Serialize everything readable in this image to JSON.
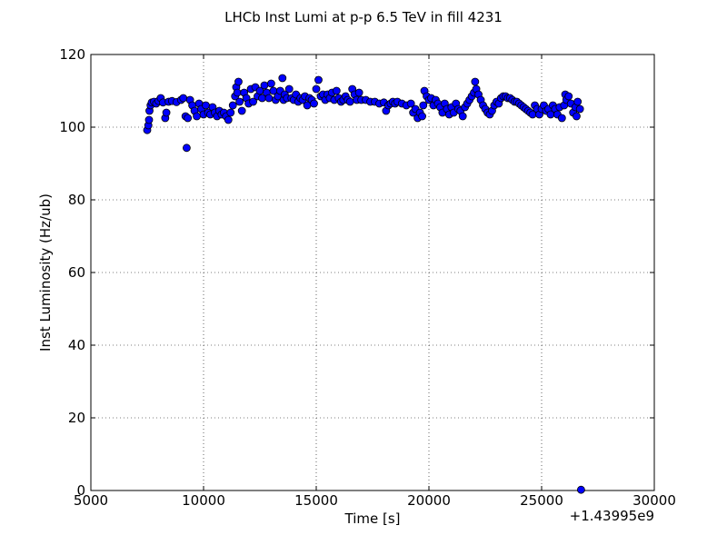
{
  "chart_data": {
    "type": "scatter",
    "title": "LHCb Inst Lumi at p-p 6.5 TeV in fill 4231",
    "xlabel": "Time [s]",
    "ylabel": "Inst Luminosity (Hz/ub)",
    "x_offset_label": "+1.43995e9",
    "xlim": [
      5000,
      30000
    ],
    "ylim": [
      0,
      120
    ],
    "xticks": [
      5000,
      10000,
      15000,
      20000,
      25000,
      30000
    ],
    "yticks": [
      0,
      20,
      40,
      60,
      80,
      100,
      120
    ],
    "grid": true,
    "marker_color": "#0000ff",
    "marker_edge": "#000000",
    "series": [
      {
        "points": [
          [
            7500,
            99.2
          ],
          [
            7550,
            100.5
          ],
          [
            7580,
            102.0
          ],
          [
            7600,
            104.5
          ],
          [
            7650,
            106.0
          ],
          [
            7700,
            106.8
          ],
          [
            7800,
            107.0
          ],
          [
            7900,
            106.5
          ],
          [
            8000,
            107.2
          ],
          [
            8100,
            108.0
          ],
          [
            8200,
            106.8
          ],
          [
            8300,
            102.5
          ],
          [
            8350,
            104.0
          ],
          [
            8450,
            107.0
          ],
          [
            8600,
            107.2
          ],
          [
            8800,
            106.9
          ],
          [
            9000,
            107.5
          ],
          [
            9100,
            108.0
          ],
          [
            9200,
            103.0
          ],
          [
            9250,
            94.3
          ],
          [
            9300,
            102.5
          ],
          [
            9400,
            107.5
          ],
          [
            9500,
            106.0
          ],
          [
            9600,
            104.5
          ],
          [
            9700,
            103.0
          ],
          [
            9800,
            106.5
          ],
          [
            9900,
            105.0
          ],
          [
            10000,
            103.5
          ],
          [
            10100,
            106.0
          ],
          [
            10200,
            104.0
          ],
          [
            10300,
            103.5
          ],
          [
            10400,
            105.5
          ],
          [
            10500,
            104.0
          ],
          [
            10600,
            103.0
          ],
          [
            10700,
            104.5
          ],
          [
            10800,
            103.5
          ],
          [
            10900,
            104.0
          ],
          [
            11000,
            103.0
          ],
          [
            11100,
            102.0
          ],
          [
            11200,
            104.0
          ],
          [
            11300,
            106.0
          ],
          [
            11400,
            108.5
          ],
          [
            11450,
            111.0
          ],
          [
            11500,
            109.5
          ],
          [
            11550,
            112.5
          ],
          [
            11600,
            107.0
          ],
          [
            11700,
            104.5
          ],
          [
            11800,
            109.5
          ],
          [
            11900,
            108.0
          ],
          [
            12000,
            106.5
          ],
          [
            12100,
            110.5
          ],
          [
            12200,
            107.0
          ],
          [
            12300,
            111.0
          ],
          [
            12400,
            108.5
          ],
          [
            12500,
            110.0
          ],
          [
            12600,
            108.0
          ],
          [
            12700,
            111.5
          ],
          [
            12800,
            109.5
          ],
          [
            12900,
            108.0
          ],
          [
            13000,
            112.0
          ],
          [
            13100,
            110.0
          ],
          [
            13200,
            107.5
          ],
          [
            13300,
            108.5
          ],
          [
            13400,
            110.0
          ],
          [
            13500,
            113.5
          ],
          [
            13550,
            107.5
          ],
          [
            13600,
            109.0
          ],
          [
            13700,
            108.0
          ],
          [
            13800,
            110.5
          ],
          [
            13900,
            108.0
          ],
          [
            14000,
            107.5
          ],
          [
            14100,
            109.0
          ],
          [
            14200,
            107.0
          ],
          [
            14300,
            108.0
          ],
          [
            14400,
            107.5
          ],
          [
            14500,
            108.5
          ],
          [
            14600,
            106.0
          ],
          [
            14700,
            108.0
          ],
          [
            14800,
            107.5
          ],
          [
            14900,
            106.5
          ],
          [
            15000,
            110.5
          ],
          [
            15100,
            113.0
          ],
          [
            15200,
            108.5
          ],
          [
            15300,
            109.0
          ],
          [
            15400,
            107.5
          ],
          [
            15500,
            109.0
          ],
          [
            15600,
            108.0
          ],
          [
            15700,
            109.5
          ],
          [
            15800,
            107.5
          ],
          [
            15900,
            110.0
          ],
          [
            16000,
            108.0
          ],
          [
            16100,
            107.0
          ],
          [
            16200,
            107.5
          ],
          [
            16300,
            108.5
          ],
          [
            16400,
            107.5
          ],
          [
            16500,
            107.0
          ],
          [
            16600,
            110.5
          ],
          [
            16700,
            109.0
          ],
          [
            16800,
            107.5
          ],
          [
            16900,
            109.5
          ],
          [
            17000,
            107.5
          ],
          [
            17200,
            107.5
          ],
          [
            17400,
            107.0
          ],
          [
            17600,
            107.0
          ],
          [
            17800,
            106.5
          ],
          [
            18000,
            106.8
          ],
          [
            18100,
            104.5
          ],
          [
            18200,
            106.0
          ],
          [
            18300,
            106.5
          ],
          [
            18400,
            107.0
          ],
          [
            18500,
            106.5
          ],
          [
            18600,
            107.0
          ],
          [
            18800,
            106.5
          ],
          [
            19000,
            106.0
          ],
          [
            19200,
            106.5
          ],
          [
            19300,
            104.0
          ],
          [
            19400,
            105.0
          ],
          [
            19500,
            102.5
          ],
          [
            19600,
            104.0
          ],
          [
            19700,
            103.0
          ],
          [
            19750,
            106.0
          ],
          [
            19800,
            110.0
          ],
          [
            19900,
            108.5
          ],
          [
            20000,
            107.5
          ],
          [
            20100,
            108.0
          ],
          [
            20200,
            106.0
          ],
          [
            20300,
            107.5
          ],
          [
            20400,
            106.5
          ],
          [
            20500,
            105.5
          ],
          [
            20600,
            104.0
          ],
          [
            20700,
            106.5
          ],
          [
            20800,
            105.0
          ],
          [
            20900,
            103.5
          ],
          [
            21000,
            105.5
          ],
          [
            21100,
            104.0
          ],
          [
            21200,
            106.5
          ],
          [
            21300,
            105.0
          ],
          [
            21400,
            104.5
          ],
          [
            21500,
            103.0
          ],
          [
            21600,
            105.5
          ],
          [
            21700,
            106.5
          ],
          [
            21800,
            107.5
          ],
          [
            21900,
            108.5
          ],
          [
            22000,
            109.5
          ],
          [
            22050,
            112.5
          ],
          [
            22100,
            110.5
          ],
          [
            22200,
            109.0
          ],
          [
            22300,
            107.5
          ],
          [
            22400,
            106.0
          ],
          [
            22500,
            105.0
          ],
          [
            22600,
            104.0
          ],
          [
            22700,
            103.5
          ],
          [
            22800,
            104.5
          ],
          [
            22900,
            106.0
          ],
          [
            23000,
            107.0
          ],
          [
            23100,
            106.5
          ],
          [
            23200,
            108.0
          ],
          [
            23300,
            108.5
          ],
          [
            23400,
            108.5
          ],
          [
            23500,
            108.0
          ],
          [
            23600,
            108.0
          ],
          [
            23700,
            107.5
          ],
          [
            23800,
            107.0
          ],
          [
            23900,
            107.0
          ],
          [
            24000,
            106.5
          ],
          [
            24100,
            106.0
          ],
          [
            24200,
            105.5
          ],
          [
            24300,
            105.0
          ],
          [
            24400,
            104.5
          ],
          [
            24500,
            104.0
          ],
          [
            24600,
            103.5
          ],
          [
            24700,
            106.0
          ],
          [
            24800,
            105.0
          ],
          [
            24900,
            103.5
          ],
          [
            25000,
            105.0
          ],
          [
            25100,
            106.0
          ],
          [
            25200,
            104.5
          ],
          [
            25300,
            105.0
          ],
          [
            25400,
            103.5
          ],
          [
            25500,
            106.0
          ],
          [
            25600,
            105.0
          ],
          [
            25700,
            103.5
          ],
          [
            25800,
            105.5
          ],
          [
            25900,
            102.5
          ],
          [
            26000,
            106.0
          ],
          [
            26050,
            109.0
          ],
          [
            26100,
            107.5
          ],
          [
            26200,
            108.5
          ],
          [
            26300,
            106.5
          ],
          [
            26400,
            104.0
          ],
          [
            26500,
            105.5
          ],
          [
            26550,
            103.0
          ],
          [
            26600,
            107.0
          ],
          [
            26700,
            105.0
          ],
          [
            26750,
            0.2
          ]
        ]
      }
    ]
  }
}
